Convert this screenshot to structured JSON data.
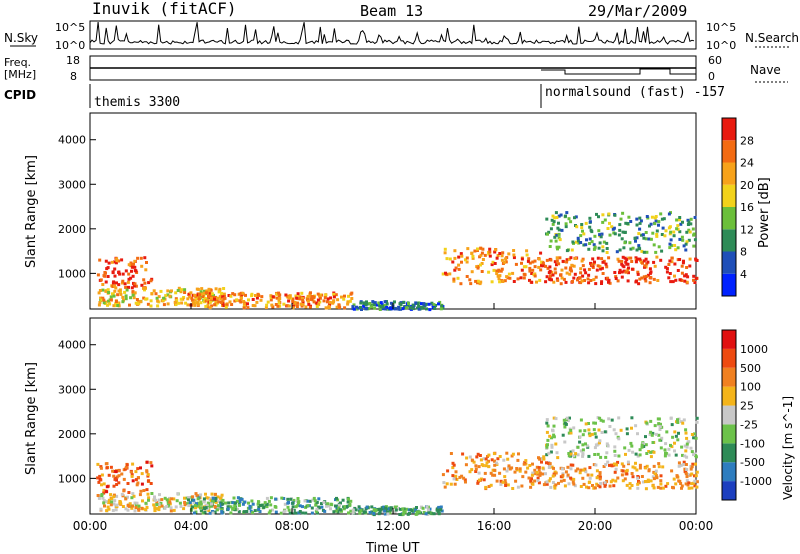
{
  "header": {
    "station": "Inuvik (fitACF)",
    "beam": "Beam 13",
    "date": "29/Mar/2009"
  },
  "panels": {
    "sky": {
      "left_label": "N.Sky",
      "ticks": [
        "10^5",
        "10^0"
      ],
      "right_label": "N.Search",
      "right_ticks": [
        "10^5",
        "10^0"
      ]
    },
    "freq": {
      "left_label_1": "Freq.",
      "left_label_2": "[MHz]",
      "ticks": [
        "18",
        "8"
      ],
      "right_label": "Nave",
      "right_ticks": [
        "60",
        "0"
      ]
    },
    "cpid": {
      "label": "CPID",
      "segments": [
        {
          "name": "themis 3300"
        },
        {
          "name": "normalsound (fast) -157"
        }
      ]
    }
  },
  "chart_data": [
    {
      "type": "heatmap",
      "name": "power",
      "xlabel": "",
      "ylabel": "Slant Range [km]",
      "x_ticks": [
        "00:00",
        "04:00",
        "08:00",
        "12:00",
        "16:00",
        "20:00",
        "00:00"
      ],
      "y_ticks": [
        1000,
        2000,
        3000,
        4000
      ],
      "ylim": [
        200,
        4600
      ],
      "colorbar": {
        "label": "Power [dB]",
        "ticks": [
          "4",
          "8",
          "12",
          "16",
          "20",
          "24",
          "28"
        ],
        "colors": [
          "#0022ff",
          "#1f4fb8",
          "#2e8b57",
          "#6bbf3a",
          "#f2d21b",
          "#f7a21a",
          "#f36b12",
          "#e81a0f"
        ]
      }
    },
    {
      "type": "heatmap",
      "name": "velocity",
      "xlabel": "Time UT",
      "ylabel": "Slant Range [km]",
      "x_ticks": [
        "00:00",
        "04:00",
        "08:00",
        "12:00",
        "16:00",
        "20:00",
        "00:00"
      ],
      "y_ticks": [
        1000,
        2000,
        3000,
        4000
      ],
      "ylim": [
        200,
        4600
      ],
      "colorbar": {
        "label": "Velocity [m s^-1]",
        "ticks": [
          "1000",
          "500",
          "100",
          "25",
          "-25",
          "-100",
          "-500",
          "-1000"
        ],
        "colors": [
          "#1c3fbf",
          "#2e7dbf",
          "#2e8b57",
          "#6cc24a",
          "#c8c8c8",
          "#f4b41a",
          "#f08020",
          "#ee4a10",
          "#e01010"
        ]
      }
    }
  ]
}
